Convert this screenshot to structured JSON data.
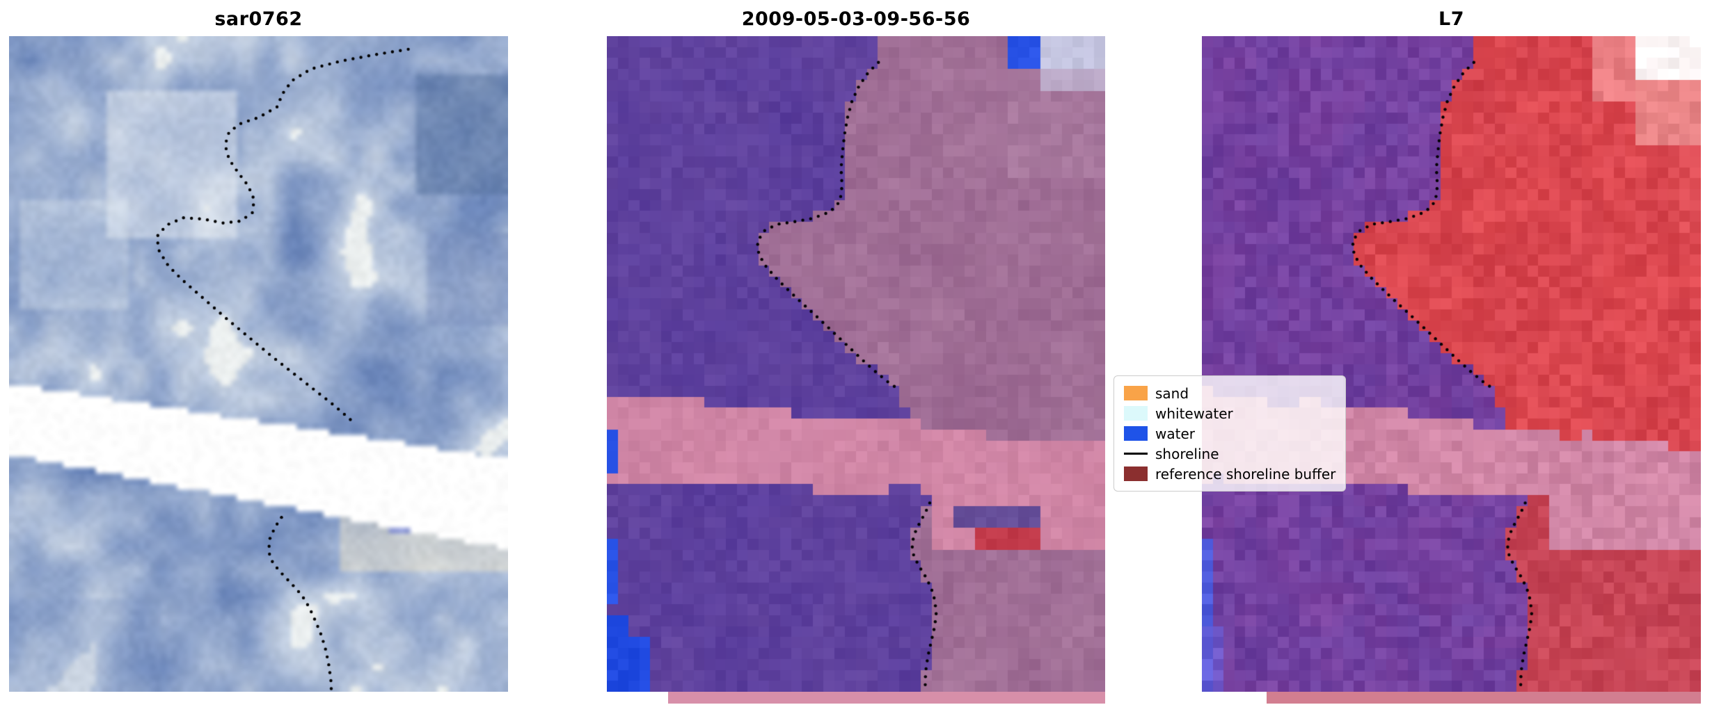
{
  "panels": [
    {
      "id": "sar0762",
      "title": "sar0762",
      "kind": "sar",
      "seed": 7,
      "cols": 92,
      "rows": 120,
      "smooth": true,
      "jitter": 0.05,
      "colors": {
        "dark": "#6b86ba",
        "mid": "#98accf",
        "light": "#d6dfe9",
        "highlight": "#f4f6f2",
        "band": "#ffffff"
      },
      "band": {
        "topL": 0.53,
        "topR": 0.645,
        "botL": 0.638,
        "botR": 0.783,
        "bulgeU": 2.0,
        "bulgeV": 0.0
      },
      "patches": [
        [
          0.82,
          0.06,
          1.0,
          0.24,
          "#54709e",
          0.5
        ],
        [
          0.2,
          0.08,
          0.46,
          0.31,
          "#eef2f5",
          0.45
        ],
        [
          0.02,
          0.25,
          0.24,
          0.42,
          "#dde6ee",
          0.35
        ],
        [
          0.84,
          0.3,
          1.0,
          0.44,
          "#7388b8",
          0.35
        ],
        [
          0.66,
          0.7,
          1.0,
          0.82,
          "#e9e3d0",
          0.55
        ],
        [
          0.76,
          0.733,
          0.91,
          0.76,
          "#8894da",
          0.85
        ],
        [
          0.0,
          0.86,
          0.3,
          1.0,
          "#7f97c4",
          0.3
        ]
      ],
      "shoreline_upper": [
        [
          0.8,
          0.02
        ],
        [
          0.735,
          0.028
        ],
        [
          0.665,
          0.038
        ],
        [
          0.605,
          0.05
        ],
        [
          0.567,
          0.068
        ],
        [
          0.548,
          0.088
        ],
        [
          0.537,
          0.108
        ],
        [
          0.5,
          0.124
        ],
        [
          0.465,
          0.133
        ],
        [
          0.441,
          0.146
        ],
        [
          0.433,
          0.166
        ],
        [
          0.441,
          0.188
        ],
        [
          0.459,
          0.208
        ],
        [
          0.479,
          0.228
        ],
        [
          0.491,
          0.249
        ],
        [
          0.488,
          0.269
        ],
        [
          0.464,
          0.282
        ],
        [
          0.429,
          0.285
        ],
        [
          0.39,
          0.279
        ],
        [
          0.35,
          0.277
        ],
        [
          0.316,
          0.288
        ],
        [
          0.296,
          0.306
        ],
        [
          0.301,
          0.328
        ],
        [
          0.319,
          0.35
        ],
        [
          0.346,
          0.371
        ],
        [
          0.376,
          0.391
        ],
        [
          0.406,
          0.411
        ],
        [
          0.436,
          0.431
        ],
        [
          0.466,
          0.45
        ],
        [
          0.496,
          0.469
        ],
        [
          0.526,
          0.488
        ],
        [
          0.556,
          0.506
        ],
        [
          0.586,
          0.524
        ],
        [
          0.616,
          0.542
        ],
        [
          0.643,
          0.558
        ],
        [
          0.668,
          0.574
        ],
        [
          0.69,
          0.589
        ]
      ],
      "shoreline_lower": [
        [
          0.546,
          0.734
        ],
        [
          0.533,
          0.749
        ],
        [
          0.523,
          0.766
        ],
        [
          0.52,
          0.786
        ],
        [
          0.529,
          0.804
        ],
        [
          0.547,
          0.82
        ],
        [
          0.567,
          0.836
        ],
        [
          0.587,
          0.853
        ],
        [
          0.602,
          0.872
        ],
        [
          0.614,
          0.892
        ],
        [
          0.626,
          0.914
        ],
        [
          0.635,
          0.937
        ],
        [
          0.641,
          0.96
        ],
        [
          0.645,
          0.983
        ],
        [
          0.646,
          1.0
        ]
      ]
    },
    {
      "id": "t20090503",
      "title": "2009-05-03-09-56-56",
      "kind": "class",
      "seed": 11,
      "cols": 46,
      "rows": 60,
      "smooth": false,
      "jitter": 0.06,
      "colors": {
        "waterA": "#583c9c",
        "waterB": "#64469f",
        "landA": "#97648e",
        "landB": "#aa7a9e",
        "bandA": "#d489a8",
        "bandB": "#c87fa0"
      },
      "band": {
        "topL": 0.54,
        "topR": 0.63,
        "botL": 0.678,
        "botR": 0.706,
        "bulgeU": 0.655,
        "bulgeV": 0.788
      },
      "patches": [
        [
          0.805,
          0.0,
          0.875,
          0.048,
          "#2a54e8",
          1
        ],
        [
          0.875,
          0.0,
          1.0,
          0.078,
          "#c9cfe9",
          0.9
        ],
        [
          0.8,
          0.05,
          1.0,
          0.21,
          "#b286a8",
          0.4
        ],
        [
          0.0,
          0.598,
          0.018,
          0.672,
          "#2a54e8",
          1
        ],
        [
          0.0,
          0.775,
          0.016,
          0.862,
          "#2a54e8",
          1
        ],
        [
          0.0,
          0.888,
          0.042,
          1.0,
          "#1f49e0",
          1
        ],
        [
          0.0,
          0.925,
          0.078,
          1.0,
          "#1f49e0",
          1
        ],
        [
          0.7,
          0.712,
          0.875,
          0.75,
          "#5a4898",
          0.9
        ],
        [
          0.73,
          0.748,
          0.863,
          0.783,
          "#c23a4a",
          1
        ]
      ],
      "strip": {
        "color": "#d78fa9"
      },
      "shoreline_upper": [
        [
          0.545,
          0.04
        ],
        [
          0.524,
          0.056
        ],
        [
          0.506,
          0.076
        ],
        [
          0.492,
          0.099
        ],
        [
          0.483,
          0.124
        ],
        [
          0.477,
          0.15
        ],
        [
          0.473,
          0.176
        ],
        [
          0.47,
          0.202
        ],
        [
          0.472,
          0.228
        ],
        [
          0.468,
          0.252
        ],
        [
          0.448,
          0.268
        ],
        [
          0.413,
          0.278
        ],
        [
          0.376,
          0.283
        ],
        [
          0.341,
          0.287
        ],
        [
          0.316,
          0.297
        ],
        [
          0.302,
          0.313
        ],
        [
          0.305,
          0.333
        ],
        [
          0.32,
          0.352
        ],
        [
          0.341,
          0.37
        ],
        [
          0.365,
          0.388
        ],
        [
          0.39,
          0.406
        ],
        [
          0.416,
          0.424
        ],
        [
          0.441,
          0.442
        ],
        [
          0.466,
          0.46
        ],
        [
          0.491,
          0.478
        ],
        [
          0.516,
          0.496
        ],
        [
          0.541,
          0.513
        ],
        [
          0.565,
          0.528
        ],
        [
          0.588,
          0.54
        ]
      ],
      "shoreline_lower": [
        [
          0.648,
          0.712
        ],
        [
          0.639,
          0.727
        ],
        [
          0.628,
          0.742
        ],
        [
          0.618,
          0.758
        ],
        [
          0.612,
          0.775
        ],
        [
          0.616,
          0.793
        ],
        [
          0.627,
          0.809
        ],
        [
          0.64,
          0.825
        ],
        [
          0.651,
          0.842
        ],
        [
          0.658,
          0.86
        ],
        [
          0.661,
          0.88
        ],
        [
          0.658,
          0.9
        ],
        [
          0.652,
          0.92
        ],
        [
          0.646,
          0.94
        ],
        [
          0.641,
          0.961
        ],
        [
          0.639,
          0.981
        ],
        [
          0.639,
          1.0
        ]
      ]
    },
    {
      "id": "l7",
      "title": "L7",
      "kind": "class",
      "seed": 23,
      "cols": 46,
      "rows": 60,
      "smooth": false,
      "jitter": 0.1,
      "colors": {
        "waterA": "#7c42a0",
        "waterB": "#6a3f9f",
        "landA": "#d03f4b",
        "landB": "#e24c52",
        "bandA": "#d489a8",
        "bandB": "#c87fa0",
        "belowMix": "#8a4470"
      },
      "band": {
        "topL": 0.54,
        "topR": 0.632,
        "botL": 0.68,
        "botR": 0.71,
        "bulgeU": 0.7,
        "bulgeV": 0.79
      },
      "patches": [
        [
          0.875,
          0.0,
          1.0,
          0.068,
          "#ffffff",
          0.95
        ],
        [
          0.79,
          0.0,
          0.875,
          0.105,
          "#ee8d90",
          0.8
        ],
        [
          0.875,
          0.068,
          1.0,
          0.17,
          "#f2a7a5",
          0.65
        ],
        [
          0.93,
          0.17,
          1.0,
          0.3,
          "#e4555c",
          0.5
        ],
        [
          0.0,
          0.76,
          0.018,
          1.0,
          "#4a5ce0",
          0.92
        ],
        [
          0.0,
          0.9,
          0.05,
          1.0,
          "#6a5fd8",
          0.7
        ]
      ],
      "strip": {
        "color": "#d27e90"
      },
      "shoreline_upper": [
        [
          0.545,
          0.04
        ],
        [
          0.524,
          0.056
        ],
        [
          0.506,
          0.076
        ],
        [
          0.492,
          0.099
        ],
        [
          0.483,
          0.124
        ],
        [
          0.477,
          0.15
        ],
        [
          0.473,
          0.176
        ],
        [
          0.47,
          0.202
        ],
        [
          0.472,
          0.228
        ],
        [
          0.468,
          0.252
        ],
        [
          0.448,
          0.268
        ],
        [
          0.413,
          0.278
        ],
        [
          0.376,
          0.283
        ],
        [
          0.341,
          0.287
        ],
        [
          0.316,
          0.297
        ],
        [
          0.302,
          0.313
        ],
        [
          0.305,
          0.333
        ],
        [
          0.32,
          0.352
        ],
        [
          0.341,
          0.37
        ],
        [
          0.365,
          0.388
        ],
        [
          0.39,
          0.406
        ],
        [
          0.416,
          0.424
        ],
        [
          0.441,
          0.442
        ],
        [
          0.466,
          0.46
        ],
        [
          0.491,
          0.478
        ],
        [
          0.516,
          0.496
        ],
        [
          0.541,
          0.513
        ],
        [
          0.565,
          0.528
        ],
        [
          0.588,
          0.54
        ]
      ],
      "shoreline_lower": [
        [
          0.648,
          0.712
        ],
        [
          0.639,
          0.727
        ],
        [
          0.628,
          0.742
        ],
        [
          0.618,
          0.758
        ],
        [
          0.612,
          0.775
        ],
        [
          0.616,
          0.793
        ],
        [
          0.627,
          0.809
        ],
        [
          0.64,
          0.825
        ],
        [
          0.651,
          0.842
        ],
        [
          0.658,
          0.86
        ],
        [
          0.661,
          0.88
        ],
        [
          0.658,
          0.9
        ],
        [
          0.652,
          0.92
        ],
        [
          0.646,
          0.94
        ],
        [
          0.641,
          0.961
        ],
        [
          0.639,
          0.981
        ],
        [
          0.639,
          1.0
        ]
      ]
    }
  ],
  "legend": {
    "entries": [
      {
        "label": "sand",
        "color": "#f9a348",
        "type": "patch"
      },
      {
        "label": "whitewater",
        "color": "#dcf9fb",
        "type": "patch"
      },
      {
        "label": "water",
        "color": "#1f53e8",
        "type": "patch"
      },
      {
        "label": "shoreline",
        "color": "#000000",
        "type": "line"
      },
      {
        "label": "reference shoreline buffer",
        "color": "#8b2f2f",
        "type": "patch"
      }
    ]
  },
  "chart_data": {
    "type": "heatmap",
    "panel_titles": [
      "sar0762",
      "2009-05-03-09-56-56",
      "L7"
    ],
    "legend_entries": [
      "sand",
      "whitewater",
      "water",
      "shoreline",
      "reference shoreline buffer"
    ],
    "panels": [
      {
        "title": "sar0762",
        "content": "SAR amplitude image chip (blue-gray tones) with black dotted detected shoreline and a white diagonal no-data gap band across the middle"
      },
      {
        "title": "2009-05-03-09-56-56",
        "content": "Classified coastal scene: water class purple (left), land mauve (right), pink diagonal reference shoreline buffer band, blue water patches in corners/edges, small red patch right of center, black dotted shoreline"
      },
      {
        "title": "L7",
        "content": "Landsat-7 false-color chip: purple water (left), red land (right), pink reference shoreline buffer band, white/light-red top-right corner, blue streak bottom-left edge, black dotted shoreline"
      }
    ],
    "axes": "none (image panels, axes hidden)"
  }
}
